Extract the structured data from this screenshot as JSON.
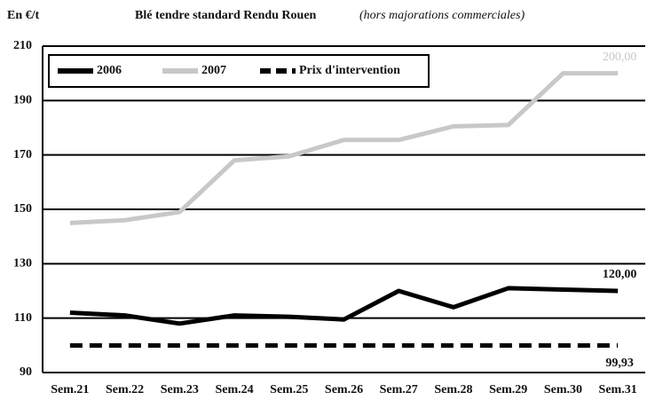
{
  "chart_data": {
    "type": "line",
    "title": "Blé tendre standard Rendu Rouen",
    "subtitle": "(hors majorations commerciales)",
    "y_label": "En €/t",
    "categories": [
      "Sem.21",
      "Sem.22",
      "Sem.23",
      "Sem.24",
      "Sem.25",
      "Sem.26",
      "Sem.27",
      "Sem.28",
      "Sem.29",
      "Sem.30",
      "Sem.31"
    ],
    "series": [
      {
        "name": "2006",
        "color": "#000000",
        "values": [
          112,
          111,
          108,
          111,
          110.5,
          109.5,
          120,
          114,
          121,
          120.5,
          120
        ],
        "value_labels": [
          null,
          null,
          null,
          null,
          null,
          null,
          null,
          null,
          null,
          null,
          "120,00"
        ]
      },
      {
        "name": "2007",
        "color": "#c8c8c8",
        "values": [
          145,
          146,
          149,
          168,
          169.5,
          175.5,
          175.5,
          180.5,
          181,
          200,
          200
        ],
        "value_labels": [
          null,
          null,
          null,
          null,
          null,
          null,
          null,
          null,
          null,
          null,
          "200,00"
        ]
      },
      {
        "name": "Prix d'intervention",
        "color": "#000000",
        "dashed": true,
        "values": [
          99.93,
          99.93,
          99.93,
          99.93,
          99.93,
          99.93,
          99.93,
          99.93,
          99.93,
          99.93,
          99.93
        ],
        "value_labels": [
          null,
          null,
          null,
          null,
          null,
          null,
          null,
          null,
          null,
          null,
          "99,93"
        ]
      }
    ],
    "ylim": [
      90,
      210
    ],
    "yticks": [
      90,
      110,
      130,
      150,
      170,
      190,
      210
    ],
    "grid": true,
    "legend": "top-left"
  }
}
